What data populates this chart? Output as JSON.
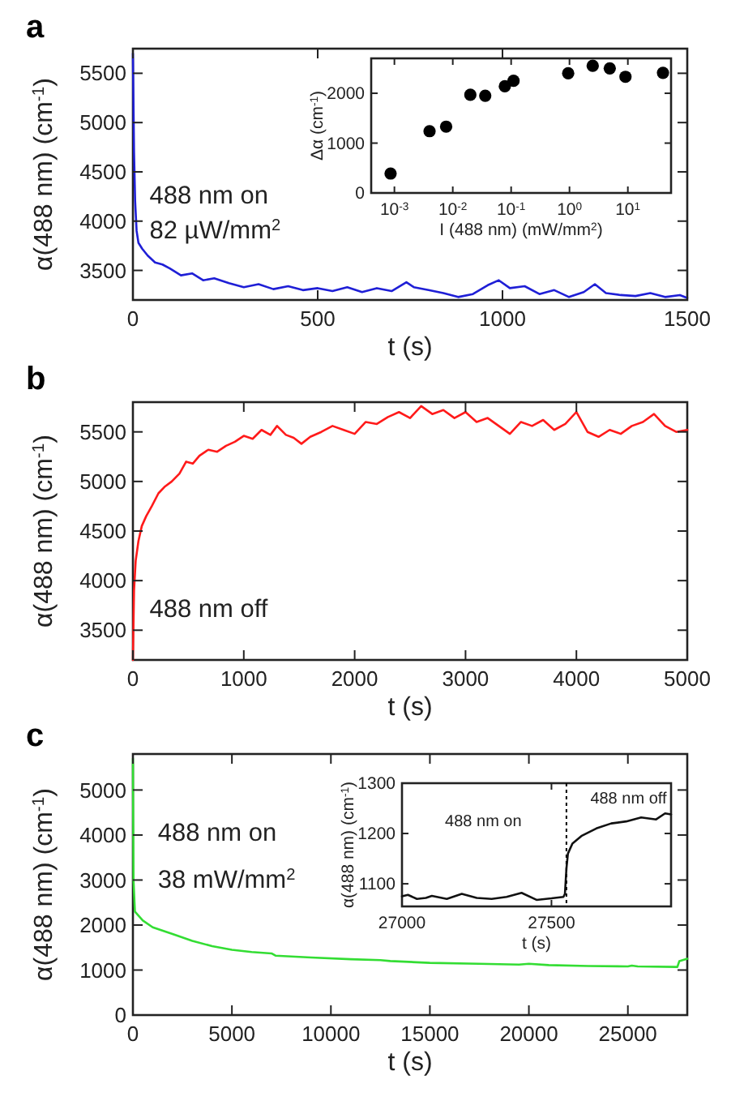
{
  "chart_data": [
    {
      "type": "line",
      "title": "a",
      "xlabel": "t (s)",
      "ylabel": "α(488 nm) (cm$^{-1}$)",
      "annotations": [
        "488 nm on",
        "82 µW/mm$^{2}$"
      ],
      "xlim": [
        0,
        1500
      ],
      "xticks": [
        0,
        500,
        1000,
        1500
      ],
      "ylim": [
        3200,
        5750
      ],
      "yticks": [
        3500,
        4000,
        4500,
        5000,
        5500
      ],
      "grid": false,
      "marker": "none",
      "line_style": "solid",
      "series": [
        {
          "color": "#1f1fd6",
          "x": [
            0,
            3,
            6,
            10,
            15,
            25,
            40,
            60,
            80,
            100,
            130,
            160,
            190,
            220,
            260,
            300,
            340,
            380,
            420,
            460,
            500,
            540,
            580,
            620,
            660,
            700,
            740,
            760,
            800,
            840,
            880,
            920,
            960,
            990,
            1020,
            1060,
            1100,
            1140,
            1180,
            1220,
            1250,
            1280,
            1320,
            1360,
            1400,
            1440,
            1480,
            1500
          ],
          "values": [
            5700,
            4700,
            4200,
            3900,
            3780,
            3720,
            3650,
            3580,
            3560,
            3520,
            3450,
            3470,
            3400,
            3420,
            3370,
            3330,
            3360,
            3310,
            3340,
            3300,
            3320,
            3290,
            3330,
            3280,
            3320,
            3290,
            3380,
            3330,
            3300,
            3270,
            3230,
            3260,
            3350,
            3400,
            3320,
            3340,
            3260,
            3300,
            3230,
            3280,
            3360,
            3270,
            3250,
            3240,
            3270,
            3230,
            3250,
            3220
          ]
        }
      ]
    },
    {
      "type": "scatter",
      "xlabel": "I (488 nm) (mW/mm$^{2}$)",
      "ylabel": "Δα (cm$^{-1}$)",
      "log": "x",
      "xlim": [
        0.0004,
        55
      ],
      "xticks": [
        {
          "value": 0.001,
          "label": "10$^{-3}$"
        },
        {
          "value": 0.01,
          "label": "10$^{-2}$"
        },
        {
          "value": 0.1,
          "label": "10$^{-1}$"
        },
        {
          "value": 1,
          "label": "10$^{0}$"
        },
        {
          "value": 10,
          "label": "10$^{1}$"
        }
      ],
      "ylim": [
        0,
        2700
      ],
      "yticks": [
        0,
        1000,
        2000
      ],
      "grid": false,
      "marker": "circle",
      "series": [
        {
          "color": "#000000",
          "x": [
            0.00086,
            0.004,
            0.0077,
            0.02,
            0.036,
            0.078,
            0.11,
            0.95,
            2.5,
            4.9,
            9.1,
            40
          ],
          "values": [
            390,
            1240,
            1330,
            1970,
            1950,
            2140,
            2250,
            2400,
            2550,
            2500,
            2330,
            2410
          ]
        }
      ]
    },
    {
      "type": "line",
      "title": "b",
      "xlabel": "t (s)",
      "ylabel": "α(488 nm) (cm$^{-1}$)",
      "annotations": [
        "488 nm off"
      ],
      "xlim": [
        0,
        5000
      ],
      "xticks": [
        0,
        1000,
        2000,
        3000,
        4000,
        5000
      ],
      "ylim": [
        3200,
        5800
      ],
      "yticks": [
        3500,
        4000,
        4500,
        5000,
        5500
      ],
      "grid": false,
      "marker": "none",
      "line_style": "solid",
      "series": [
        {
          "color": "#ff1a1a",
          "x": [
            0,
            10,
            25,
            50,
            80,
            120,
            170,
            230,
            290,
            350,
            420,
            480,
            540,
            600,
            680,
            760,
            840,
            920,
            1000,
            1080,
            1160,
            1240,
            1300,
            1380,
            1450,
            1520,
            1600,
            1700,
            1800,
            1900,
            2000,
            2100,
            2200,
            2300,
            2400,
            2500,
            2600,
            2700,
            2800,
            2900,
            3000,
            3100,
            3200,
            3300,
            3400,
            3500,
            3600,
            3700,
            3800,
            3900,
            4000,
            4100,
            4200,
            4300,
            4400,
            4500,
            4600,
            4700,
            4800,
            4900,
            5000
          ],
          "values": [
            3200,
            3900,
            4200,
            4400,
            4550,
            4650,
            4750,
            4880,
            4950,
            5000,
            5080,
            5200,
            5180,
            5260,
            5320,
            5300,
            5360,
            5400,
            5460,
            5430,
            5520,
            5470,
            5560,
            5470,
            5440,
            5380,
            5450,
            5500,
            5560,
            5520,
            5480,
            5600,
            5580,
            5650,
            5700,
            5640,
            5760,
            5680,
            5720,
            5640,
            5700,
            5600,
            5640,
            5560,
            5480,
            5600,
            5560,
            5620,
            5520,
            5580,
            5700,
            5500,
            5450,
            5520,
            5480,
            5560,
            5600,
            5680,
            5560,
            5500,
            5520
          ]
        }
      ]
    },
    {
      "type": "line",
      "title": "c",
      "xlabel": "t (s)",
      "ylabel": "α(488 nm) (cm$^{-1}$)",
      "annotations": [
        "488 nm on",
        "38 mW/mm$^{2}$"
      ],
      "xlim": [
        0,
        28000
      ],
      "xticks": [
        0,
        5000,
        10000,
        15000,
        20000,
        25000
      ],
      "ylim": [
        0,
        5800
      ],
      "yticks": [
        0,
        1000,
        2000,
        3000,
        4000,
        5000
      ],
      "grid": false,
      "marker": "none",
      "line_style": "solid",
      "series": [
        {
          "color": "#33dd33",
          "x": [
            0,
            30,
            100,
            500,
            1000,
            2000,
            3000,
            4000,
            5000,
            6000,
            7000,
            7200,
            9000,
            11000,
            12500,
            13000,
            15000,
            17500,
            19500,
            20000,
            21000,
            23000,
            25000,
            25200,
            25500,
            27400,
            27500,
            27600,
            28000
          ],
          "values": [
            5700,
            3000,
            2300,
            2100,
            1950,
            1800,
            1650,
            1530,
            1450,
            1400,
            1370,
            1320,
            1280,
            1240,
            1220,
            1200,
            1160,
            1140,
            1120,
            1140,
            1110,
            1090,
            1080,
            1100,
            1080,
            1070,
            1070,
            1200,
            1250
          ]
        }
      ]
    },
    {
      "type": "line",
      "xlabel": "t (s)",
      "ylabel": "α(488 nm) (cm$^{-1}$)",
      "annotations": [
        "488 nm on",
        "488 nm off"
      ],
      "xlim": [
        27000,
        27900
      ],
      "xticks": [
        27000,
        27500
      ],
      "ylim": [
        1055,
        1300
      ],
      "yticks": [
        1100,
        1200,
        1300
      ],
      "grid": false,
      "marker": "none",
      "line_style": "solid",
      "ref_lines": [
        {
          "axis": "x",
          "value": 27550,
          "line_style": "dotted",
          "color": "#000000"
        }
      ],
      "series": [
        {
          "color": "#111111",
          "x": [
            27000,
            27020,
            27050,
            27080,
            27100,
            27150,
            27200,
            27250,
            27300,
            27350,
            27400,
            27450,
            27500,
            27540,
            27545,
            27550,
            27555,
            27570,
            27600,
            27650,
            27700,
            27750,
            27800,
            27850,
            27880,
            27900
          ],
          "values": [
            1075,
            1078,
            1070,
            1072,
            1076,
            1070,
            1080,
            1072,
            1070,
            1074,
            1082,
            1068,
            1071,
            1074,
            1080,
            1130,
            1160,
            1180,
            1195,
            1210,
            1220,
            1224,
            1232,
            1228,
            1240,
            1238
          ]
        }
      ]
    }
  ]
}
